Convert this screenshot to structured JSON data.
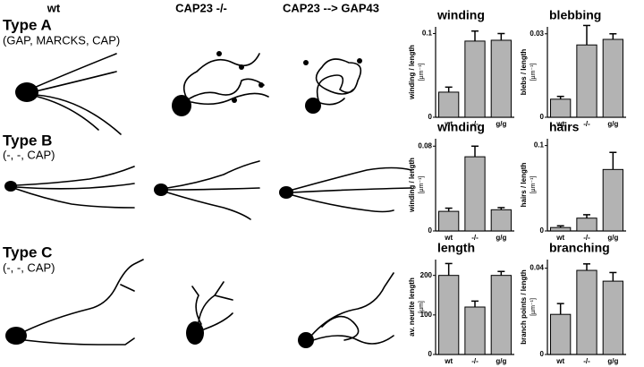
{
  "columns": [
    "wt",
    "CAP23 -/-",
    "CAP23 --> GAP43"
  ],
  "types": [
    {
      "name": "Type A",
      "subtitle": "(GAP, MARCKS, CAP)"
    },
    {
      "name": "Type B",
      "subtitle": "(-, -, CAP)"
    },
    {
      "name": "Type C",
      "subtitle": "(-, -, CAP)"
    }
  ],
  "chart_data": [
    {
      "type": "bar",
      "title": "winding",
      "ylabel": "winding / length",
      "unit": "[µm⁻¹]",
      "categories": [
        "wt",
        "-/-",
        "g/g"
      ],
      "values": [
        0.03,
        0.091,
        0.092
      ],
      "errors": [
        0.006,
        0.012,
        0.008
      ],
      "color": "#b3b3b3",
      "ylim": [
        0,
        0.108
      ],
      "yticks": [
        0,
        0.1
      ]
    },
    {
      "type": "bar",
      "title": "blebbing",
      "ylabel": "blebs / length",
      "unit": "[µm⁻¹]",
      "categories": [
        "wt",
        "-/-",
        "g/g"
      ],
      "values": [
        0.0065,
        0.026,
        0.028
      ],
      "errors": [
        0.001,
        0.007,
        0.002
      ],
      "color": "#b3b3b3",
      "ylim": [
        0,
        0.0325
      ],
      "yticks": [
        0,
        0.03
      ]
    },
    {
      "type": "bar",
      "title": "winding",
      "ylabel": "winding / length",
      "unit": "[µm⁻¹]",
      "categories": [
        "wt",
        "-/-",
        "g/g"
      ],
      "values": [
        0.0185,
        0.07,
        0.02
      ],
      "errors": [
        0.003,
        0.01,
        0.002
      ],
      "color": "#b3b3b3",
      "ylim": [
        0,
        0.087
      ],
      "yticks": [
        0,
        0.08
      ]
    },
    {
      "type": "bar",
      "title": "hairs",
      "ylabel": "hairs / length",
      "unit": "[µm⁻¹]",
      "categories": [
        "wt",
        "-/-",
        "g/g"
      ],
      "values": [
        0.004,
        0.015,
        0.072
      ],
      "errors": [
        0.002,
        0.004,
        0.02
      ],
      "color": "#b3b3b3",
      "ylim": [
        0,
        0.108
      ],
      "yticks": [
        0,
        0.1
      ]
    },
    {
      "type": "bar",
      "title": "length",
      "ylabel": "av. neurite length",
      "unit": "[µm]",
      "categories": [
        "wt",
        "-/-",
        "g/g"
      ],
      "values": [
        200,
        120,
        200
      ],
      "errors": [
        30,
        15,
        10
      ],
      "color": "#b3b3b3",
      "ylim": [
        0,
        240
      ],
      "yticks": [
        0,
        100,
        200
      ]
    },
    {
      "type": "bar",
      "title": "branching",
      "ylabel": "branch points / length",
      "unit": "[µm⁻¹]",
      "categories": [
        "wt",
        "-/-",
        "g/g"
      ],
      "values": [
        0.0186,
        0.039,
        0.034
      ],
      "errors": [
        0.005,
        0.003,
        0.004
      ],
      "color": "#b3b3b3",
      "ylim": [
        0,
        0.044
      ],
      "yticks": [
        0,
        0.04
      ]
    }
  ]
}
